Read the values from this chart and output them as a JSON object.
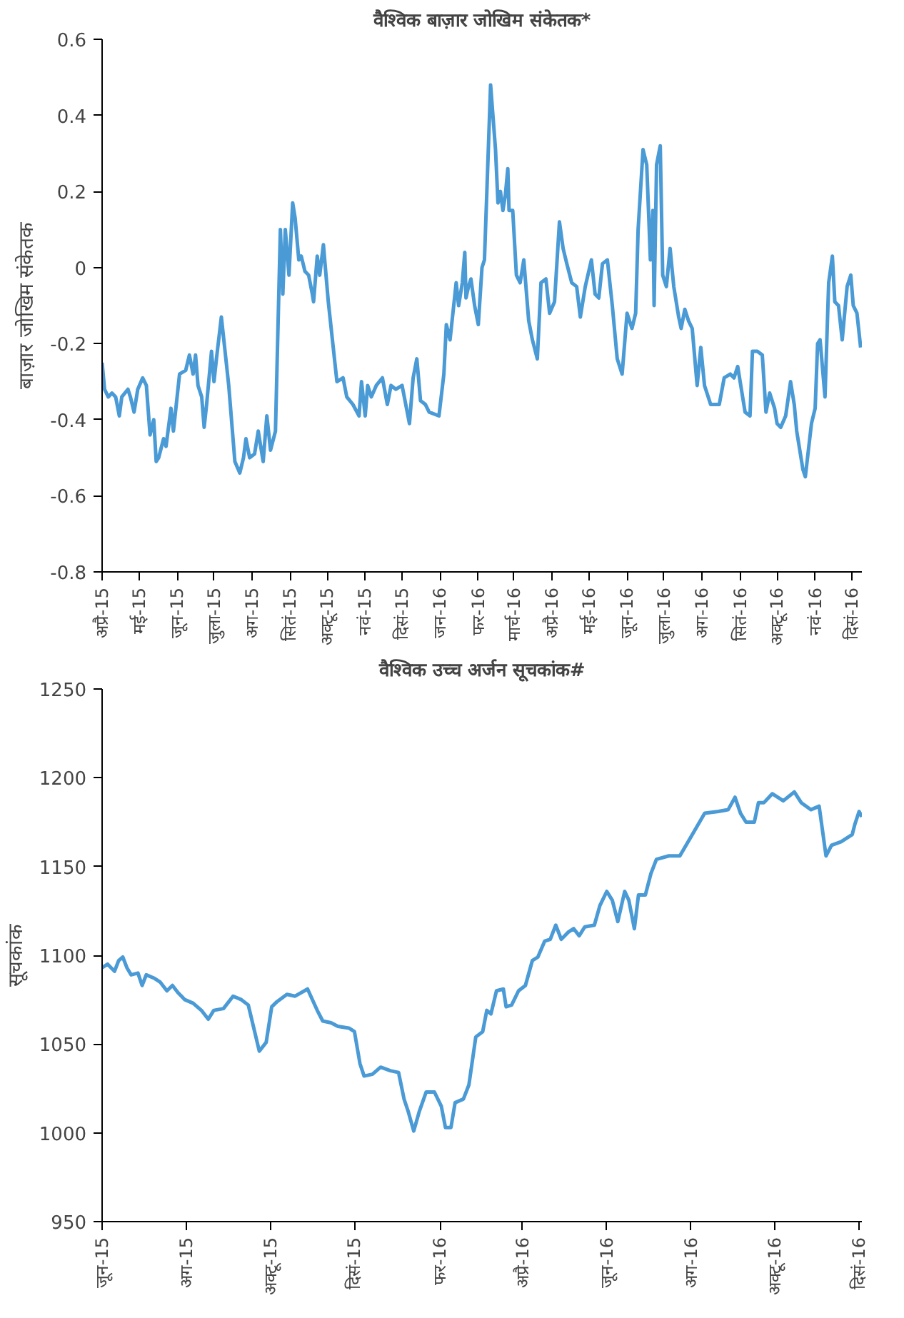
{
  "chart_data": [
    {
      "type": "line",
      "title": "वैश्विक बाज़ार जोखिम संकेतक*",
      "ylabel": "बाज़ार जोखिम संकेतक",
      "xlim": [
        "2015-04-01",
        "2016-12-09"
      ],
      "ylim": [
        -0.8,
        0.6
      ],
      "yticks": [
        -0.8,
        -0.6,
        -0.4,
        -0.2,
        0,
        0.2,
        0.4,
        0.6
      ],
      "xticks": [
        {
          "value": "2015-04-01",
          "label": "अप्रै-15"
        },
        {
          "value": "2015-05-01",
          "label": "मई-15"
        },
        {
          "value": "2015-06-01",
          "label": "जून-15"
        },
        {
          "value": "2015-07-01",
          "label": "जुला-15"
        },
        {
          "value": "2015-08-01",
          "label": "अग-15"
        },
        {
          "value": "2015-09-01",
          "label": "सितं-15"
        },
        {
          "value": "2015-10-01",
          "label": "अक्टू-15"
        },
        {
          "value": "2015-11-01",
          "label": "नवं-15"
        },
        {
          "value": "2015-12-01",
          "label": "दिसं-15"
        },
        {
          "value": "2016-01-01",
          "label": "जन-16"
        },
        {
          "value": "2016-02-01",
          "label": "फर-16"
        },
        {
          "value": "2016-03-01",
          "label": "मार्च-16"
        },
        {
          "value": "2016-04-01",
          "label": "अप्रै-16"
        },
        {
          "value": "2016-05-01",
          "label": "मई-16"
        },
        {
          "value": "2016-06-01",
          "label": "जून-16"
        },
        {
          "value": "2016-07-01",
          "label": "जुला-16"
        },
        {
          "value": "2016-08-01",
          "label": "अग-16"
        },
        {
          "value": "2016-09-01",
          "label": "सितं-16"
        },
        {
          "value": "2016-10-01",
          "label": "अक्टू-16"
        },
        {
          "value": "2016-11-01",
          "label": "नवं-16"
        },
        {
          "value": "2016-12-01",
          "label": "दिसं-16"
        }
      ],
      "x": [
        "2015-04-01",
        "2015-04-03",
        "2015-04-06",
        "2015-04-09",
        "2015-04-12",
        "2015-04-15",
        "2015-04-17",
        "2015-04-22",
        "2015-04-24",
        "2015-04-27",
        "2015-04-30",
        "2015-05-04",
        "2015-05-07",
        "2015-05-10",
        "2015-05-13",
        "2015-05-15",
        "2015-05-17",
        "2015-05-21",
        "2015-05-23",
        "2015-05-27",
        "2015-05-29",
        "2015-06-03",
        "2015-06-08",
        "2015-06-11",
        "2015-06-14",
        "2015-06-16",
        "2015-06-18",
        "2015-06-21",
        "2015-06-23",
        "2015-06-25",
        "2015-06-29",
        "2015-07-01",
        "2015-07-03",
        "2015-07-07",
        "2015-07-13",
        "2015-07-16",
        "2015-07-18",
        "2015-07-22",
        "2015-07-25",
        "2015-07-27",
        "2015-07-30",
        "2015-08-03",
        "2015-08-06",
        "2015-08-10",
        "2015-08-13",
        "2015-08-16",
        "2015-08-20",
        "2015-08-24",
        "2015-08-26",
        "2015-08-28",
        "2015-08-31",
        "2015-09-03",
        "2015-09-05",
        "2015-09-08",
        "2015-09-10",
        "2015-09-13",
        "2015-09-16",
        "2015-09-19",
        "2015-09-20",
        "2015-09-23",
        "2015-09-25",
        "2015-09-28",
        "2015-10-02",
        "2015-10-06",
        "2015-10-09",
        "2015-10-14",
        "2015-10-17",
        "2015-10-22",
        "2015-10-27",
        "2015-10-29",
        "2015-11-01",
        "2015-11-03",
        "2015-11-06",
        "2015-11-10",
        "2015-11-15",
        "2015-11-19",
        "2015-11-22",
        "2015-11-26",
        "2015-12-01",
        "2015-12-07",
        "2015-12-10",
        "2015-12-13",
        "2015-12-16",
        "2015-12-20",
        "2015-12-23",
        "2015-12-31",
        "2016-01-04",
        "2016-01-06",
        "2016-01-09",
        "2016-01-14",
        "2016-01-16",
        "2016-01-19",
        "2016-01-21",
        "2016-01-22",
        "2016-01-24",
        "2016-01-26",
        "2016-01-29",
        "2016-02-01",
        "2016-02-04",
        "2016-02-06",
        "2016-02-11",
        "2016-02-15",
        "2016-02-17",
        "2016-02-19",
        "2016-02-21",
        "2016-02-23",
        "2016-02-25",
        "2016-02-26",
        "2016-02-29",
        "2016-03-03",
        "2016-03-06",
        "2016-03-09",
        "2016-03-13",
        "2016-03-16",
        "2016-03-20",
        "2016-03-23",
        "2016-03-27",
        "2016-03-30",
        "2016-04-03",
        "2016-04-07",
        "2016-04-10",
        "2016-04-13",
        "2016-04-17",
        "2016-04-21",
        "2016-04-24",
        "2016-04-28",
        "2016-05-03",
        "2016-05-06",
        "2016-05-09",
        "2016-05-12",
        "2016-05-16",
        "2016-05-20",
        "2016-05-24",
        "2016-05-28",
        "2016-06-01",
        "2016-06-05",
        "2016-06-08",
        "2016-06-10",
        "2016-06-14",
        "2016-06-17",
        "2016-06-20",
        "2016-06-22",
        "2016-06-23",
        "2016-06-25",
        "2016-06-28",
        "2016-06-30",
        "2016-07-03",
        "2016-07-06",
        "2016-07-09",
        "2016-07-13",
        "2016-07-15",
        "2016-07-18",
        "2016-07-21",
        "2016-07-24",
        "2016-07-28",
        "2016-07-31",
        "2016-08-03",
        "2016-08-08",
        "2016-08-15",
        "2016-08-19",
        "2016-08-24",
        "2016-08-27",
        "2016-08-30",
        "2016-09-03",
        "2016-09-05",
        "2016-09-09",
        "2016-09-11",
        "2016-09-15",
        "2016-09-19",
        "2016-09-22",
        "2016-09-25",
        "2016-09-29",
        "2016-10-01",
        "2016-10-04",
        "2016-10-08",
        "2016-10-12",
        "2016-10-15",
        "2016-10-17",
        "2016-10-22",
        "2016-10-24",
        "2016-10-29",
        "2016-11-01",
        "2016-11-03",
        "2016-11-05",
        "2016-11-09",
        "2016-11-12",
        "2016-11-15",
        "2016-11-17",
        "2016-11-20",
        "2016-11-23",
        "2016-11-27",
        "2016-11-30",
        "2016-12-02",
        "2016-12-05",
        "2016-12-08"
      ],
      "series": [
        {
          "color": "#4a9ad6",
          "values": [
            -0.25,
            -0.32,
            -0.34,
            -0.33,
            -0.34,
            -0.39,
            -0.34,
            -0.32,
            -0.34,
            -0.38,
            -0.32,
            -0.29,
            -0.31,
            -0.44,
            -0.4,
            -0.51,
            -0.5,
            -0.45,
            -0.47,
            -0.37,
            -0.43,
            -0.28,
            -0.27,
            -0.23,
            -0.28,
            -0.23,
            -0.31,
            -0.34,
            -0.42,
            -0.36,
            -0.22,
            -0.3,
            -0.24,
            -0.13,
            -0.31,
            -0.43,
            -0.51,
            -0.54,
            -0.5,
            -0.45,
            -0.5,
            -0.49,
            -0.43,
            -0.51,
            -0.39,
            -0.48,
            -0.43,
            0.1,
            -0.07,
            0.1,
            -0.02,
            0.17,
            0.13,
            0.02,
            0.03,
            -0.01,
            -0.02,
            -0.07,
            -0.09,
            0.03,
            -0.02,
            0.06,
            -0.09,
            -0.21,
            -0.3,
            -0.29,
            -0.34,
            -0.36,
            -0.39,
            -0.3,
            -0.39,
            -0.31,
            -0.34,
            -0.31,
            -0.29,
            -0.36,
            -0.31,
            -0.32,
            -0.31,
            -0.41,
            -0.29,
            -0.24,
            -0.35,
            -0.36,
            -0.38,
            -0.39,
            -0.28,
            -0.15,
            -0.19,
            -0.04,
            -0.1,
            -0.04,
            0.04,
            -0.08,
            -0.05,
            -0.03,
            -0.1,
            -0.15,
            0.0,
            0.02,
            0.48,
            0.31,
            0.17,
            0.2,
            0.15,
            0.19,
            0.26,
            0.15,
            0.15,
            -0.02,
            -0.04,
            0.02,
            -0.14,
            -0.19,
            -0.24,
            -0.04,
            -0.03,
            -0.12,
            -0.09,
            0.12,
            0.05,
            0.01,
            -0.04,
            -0.05,
            -0.13,
            -0.05,
            0.02,
            -0.07,
            -0.08,
            0.01,
            0.02,
            -0.1,
            -0.24,
            -0.28,
            -0.12,
            -0.16,
            -0.12,
            0.1,
            0.31,
            0.27,
            0.02,
            0.15,
            -0.1,
            0.27,
            0.32,
            -0.02,
            -0.05,
            0.05,
            -0.05,
            -0.13,
            -0.16,
            -0.11,
            -0.14,
            -0.16,
            -0.31,
            -0.21,
            -0.31,
            -0.36,
            -0.36,
            -0.29,
            -0.28,
            -0.29,
            -0.26,
            -0.34,
            -0.38,
            -0.39,
            -0.22,
            -0.22,
            -0.23,
            -0.38,
            -0.33,
            -0.37,
            -0.41,
            -0.42,
            -0.39,
            -0.3,
            -0.36,
            -0.43,
            -0.53,
            -0.55,
            -0.41,
            -0.37,
            -0.2,
            -0.19,
            -0.34,
            -0.04,
            0.03,
            -0.09,
            -0.1,
            -0.19,
            -0.05,
            -0.02,
            -0.1,
            -0.12,
            -0.21
          ]
        }
      ]
    },
    {
      "type": "line",
      "title": "वैश्विक उच्च अर्जन सूचकांक#",
      "ylabel": "सूचकांक",
      "xlim": [
        "2015-06-01",
        "2016-12-03"
      ],
      "ylim": [
        950,
        1250
      ],
      "yticks": [
        950,
        1000,
        1050,
        1100,
        1150,
        1200,
        1250
      ],
      "xticks": [
        {
          "value": "2015-06-01",
          "label": "जून-15"
        },
        {
          "value": "2015-08-01",
          "label": "अग-15"
        },
        {
          "value": "2015-10-01",
          "label": "अक्टू-15"
        },
        {
          "value": "2015-12-01",
          "label": "दिसं-15"
        },
        {
          "value": "2016-02-01",
          "label": "फर-16"
        },
        {
          "value": "2016-04-01",
          "label": "अप्रै-16"
        },
        {
          "value": "2016-06-01",
          "label": "जून-16"
        },
        {
          "value": "2016-08-01",
          "label": "अग-16"
        },
        {
          "value": "2016-10-01",
          "label": "अक्टू-16"
        },
        {
          "value": "2016-12-01",
          "label": "दिसं-16"
        }
      ],
      "x": [
        "2015-06-01",
        "2015-06-05",
        "2015-06-10",
        "2015-06-13",
        "2015-06-16",
        "2015-06-19",
        "2015-06-22",
        "2015-06-27",
        "2015-06-30",
        "2015-07-03",
        "2015-07-09",
        "2015-07-13",
        "2015-07-18",
        "2015-07-22",
        "2015-07-26",
        "2015-07-31",
        "2015-08-06",
        "2015-08-12",
        "2015-08-17",
        "2015-08-21",
        "2015-08-28",
        "2015-09-04",
        "2015-09-10",
        "2015-09-15",
        "2015-09-19",
        "2015-09-23",
        "2015-09-28",
        "2015-10-02",
        "2015-10-06",
        "2015-10-13",
        "2015-10-19",
        "2015-10-28",
        "2015-11-04",
        "2015-11-08",
        "2015-11-14",
        "2015-11-19",
        "2015-11-27",
        "2015-12-01",
        "2015-12-05",
        "2015-12-08",
        "2015-12-14",
        "2015-12-20",
        "2015-12-27",
        "2016-01-02",
        "2016-01-06",
        "2016-01-09",
        "2016-01-13",
        "2016-01-17",
        "2016-01-22",
        "2016-01-28",
        "2016-02-02",
        "2016-02-05",
        "2016-02-09",
        "2016-02-12",
        "2016-02-18",
        "2016-02-22",
        "2016-02-27",
        "2016-03-03",
        "2016-03-06",
        "2016-03-09",
        "2016-03-13",
        "2016-03-18",
        "2016-03-20",
        "2016-03-24",
        "2016-03-29",
        "2016-04-03",
        "2016-04-08",
        "2016-04-12",
        "2016-04-17",
        "2016-04-21",
        "2016-04-25",
        "2016-04-29",
        "2016-05-04",
        "2016-05-08",
        "2016-05-12",
        "2016-05-16",
        "2016-05-23",
        "2016-05-27",
        "2016-06-01",
        "2016-06-05",
        "2016-06-09",
        "2016-06-14",
        "2016-06-17",
        "2016-06-21",
        "2016-06-24",
        "2016-06-29",
        "2016-07-03",
        "2016-07-07",
        "2016-07-16",
        "2016-07-24",
        "2016-08-02",
        "2016-08-11",
        "2016-08-21",
        "2016-08-28",
        "2016-09-02",
        "2016-09-06",
        "2016-09-10",
        "2016-09-16",
        "2016-09-19",
        "2016-09-23",
        "2016-09-29",
        "2016-10-07",
        "2016-10-15",
        "2016-10-20",
        "2016-10-27",
        "2016-11-02",
        "2016-11-07",
        "2016-11-11",
        "2016-11-18",
        "2016-11-26",
        "2016-11-28",
        "2016-12-01",
        "2016-12-03"
      ],
      "series": [
        {
          "color": "#4a9ad6",
          "values": [
            1093,
            1095,
            1091,
            1097,
            1099,
            1093,
            1089,
            1090,
            1083,
            1089,
            1087,
            1085,
            1080,
            1083,
            1079,
            1075,
            1073,
            1069,
            1064,
            1069,
            1070,
            1077,
            1075,
            1072,
            1059,
            1046,
            1051,
            1071,
            1074,
            1078,
            1077,
            1081,
            1069,
            1063,
            1062,
            1060,
            1059,
            1057,
            1039,
            1032,
            1033,
            1037,
            1035,
            1034,
            1019,
            1012,
            1001,
            1012,
            1023,
            1023,
            1015,
            1003,
            1003,
            1017,
            1019,
            1027,
            1054,
            1057,
            1069,
            1067,
            1080,
            1081,
            1071,
            1072,
            1080,
            1083,
            1097,
            1099,
            1108,
            1109,
            1117,
            1109,
            1113,
            1115,
            1111,
            1116,
            1117,
            1128,
            1136,
            1131,
            1119,
            1136,
            1131,
            1115,
            1134,
            1134,
            1146,
            1154,
            1156,
            1156,
            1168,
            1180,
            1181,
            1182,
            1189,
            1180,
            1175,
            1175,
            1186,
            1186,
            1191,
            1187,
            1192,
            1186,
            1182,
            1184,
            1156,
            1162,
            1164,
            1168,
            1174,
            1181,
            1178
          ]
        }
      ]
    }
  ]
}
